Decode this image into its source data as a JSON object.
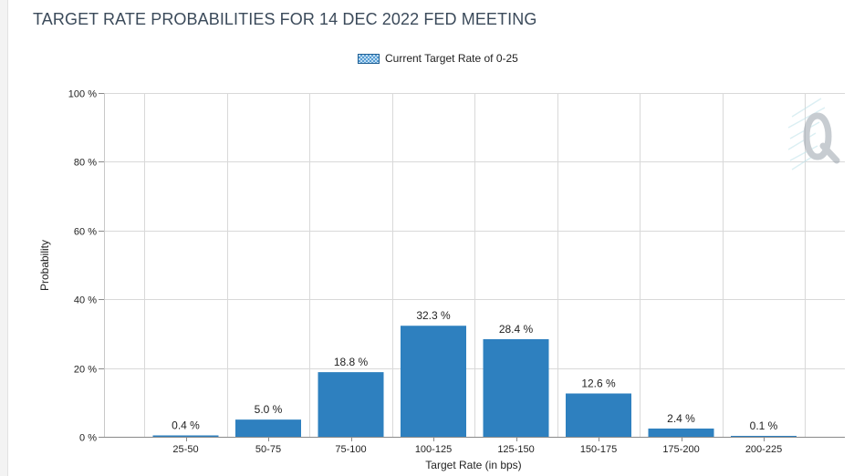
{
  "chart_data": {
    "type": "bar",
    "title": "TARGET RATE PROBABILITIES FOR 14 DEC 2022 FED MEETING",
    "xlabel": "Target Rate (in bps)",
    "ylabel": "Probability",
    "categories": [
      "25-50",
      "50-75",
      "75-100",
      "100-125",
      "125-150",
      "150-175",
      "175-200",
      "200-225"
    ],
    "series": [
      {
        "name": "Current Target Rate of 0-25",
        "values": [
          0.4,
          5.0,
          18.8,
          32.3,
          28.4,
          12.6,
          2.4,
          0.1
        ],
        "labels": [
          "0.4 %",
          "5.0 %",
          "18.8 %",
          "32.3 %",
          "28.4 %",
          "12.6 %",
          "2.4 %",
          "0.1 %"
        ]
      }
    ],
    "yticks": [
      0,
      20,
      40,
      60,
      80,
      100
    ],
    "ytick_labels": [
      "0 %",
      "20 %",
      "40 %",
      "60 %",
      "80 %",
      "100 %"
    ],
    "ylim": [
      0,
      100
    ],
    "grid": true,
    "legend_position": "top-center",
    "bar_color": "#2e80bf"
  }
}
